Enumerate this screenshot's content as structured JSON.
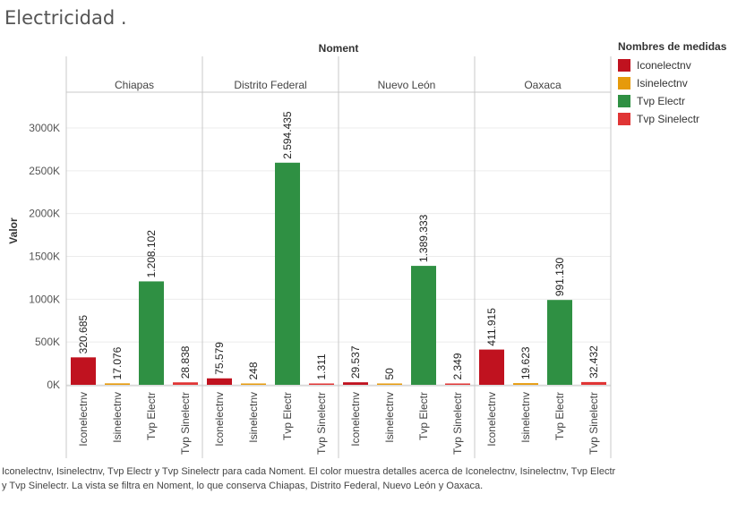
{
  "title": "Electricidad .",
  "chart_data": {
    "type": "bar",
    "column_header": "Noment",
    "panels": [
      "Chiapas",
      "Distrito Federal",
      "Nuevo León",
      "Oaxaca"
    ],
    "categories": [
      "Iconelectnv",
      "Isinelectnv",
      "Tvp Electr",
      "Tvp Sinelectr"
    ],
    "values": [
      [
        320685,
        17076,
        1208102,
        28838
      ],
      [
        75579,
        248,
        2594435,
        1311
      ],
      [
        29537,
        50,
        1389333,
        2349
      ],
      [
        411915,
        19623,
        991130,
        32432
      ]
    ],
    "data_labels": [
      [
        "320.685",
        "17.076",
        "1.208.102",
        "28.838"
      ],
      [
        "75.579",
        "248",
        "2.594.435",
        "1.311"
      ],
      [
        "29.537",
        "50",
        "1.389.333",
        "2.349"
      ],
      [
        "411.915",
        "19.623",
        "991.130",
        "32.432"
      ]
    ],
    "ylabel": "Valor",
    "ylim": [
      0,
      3400000
    ],
    "yticks": [
      0,
      500000,
      1000000,
      1500000,
      2000000,
      2500000,
      3000000
    ],
    "ytick_labels": [
      "0K",
      "500K",
      "1000K",
      "1500K",
      "2000K",
      "2500K",
      "3000K"
    ],
    "colors": {
      "Iconelectnv": "#c0121f",
      "Isinelectnv": "#e69a0b",
      "Tvp Electr": "#2f9043",
      "Tvp Sinelectr": "#e03535"
    },
    "legend": {
      "title": "Nombres de medidas",
      "position": "right",
      "items": [
        "Iconelectnv",
        "Isinelectnv",
        "Tvp Electr",
        "Tvp Sinelectr"
      ]
    },
    "grid": true
  },
  "caption": "Iconelectnv, Isinelectnv, Tvp Electr y Tvp Sinelectr para cada Noment.  El color muestra detalles acerca de Iconelectnv, Isinelectnv, Tvp Electr y Tvp Sinelectr. La vista se filtra en Noment, lo que conserva Chiapas, Distrito Federal, Nuevo León y Oaxaca."
}
